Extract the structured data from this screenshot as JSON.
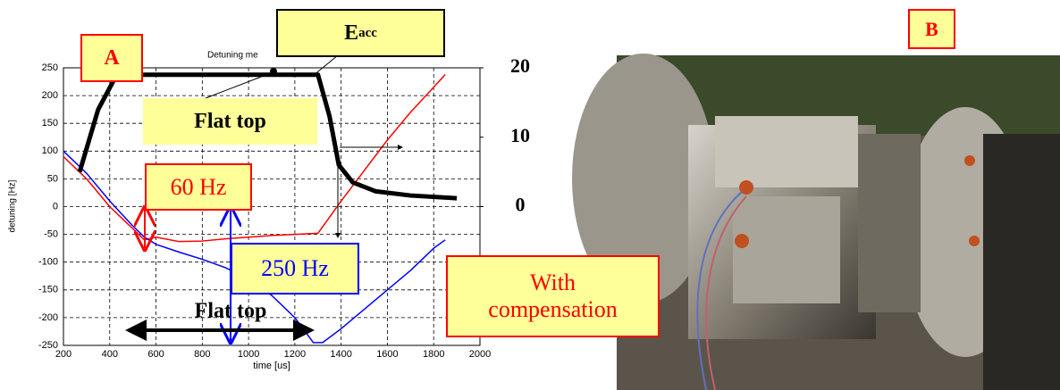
{
  "chart_data": {
    "type": "line",
    "title": "Detuning me",
    "xlabel": "time [us]",
    "ylabel": "detuning [Hz]",
    "xlim": [
      200,
      2000
    ],
    "xticks": [
      200,
      400,
      600,
      800,
      1000,
      1200,
      1400,
      1600,
      1800,
      2000
    ],
    "ylim": [
      -250,
      250
    ],
    "yticks": [
      -250,
      -200,
      -150,
      -100,
      -50,
      0,
      50,
      100,
      150,
      200,
      250
    ],
    "y2lim": [
      -20,
      20
    ],
    "y2ticks": [
      0,
      10,
      20
    ],
    "grid": true,
    "series": [
      {
        "color": "#ff0000",
        "x": [
          200,
          300,
          400,
          500,
          550,
          600,
          700,
          800,
          900,
          1000,
          1100,
          1200,
          1300,
          1400,
          1500,
          1600,
          1700,
          1800,
          1850
        ],
        "values": [
          90,
          50,
          0,
          -40,
          -60,
          -55,
          -63,
          -62,
          -58,
          -55,
          -52,
          -50,
          -48,
          10,
          65,
          120,
          170,
          215,
          238
        ]
      },
      {
        "color": "#0000ff",
        "x": [
          200,
          300,
          400,
          500,
          550,
          600,
          700,
          800,
          900,
          1000,
          1100,
          1200,
          1280,
          1320,
          1400,
          1500,
          1600,
          1700,
          1800,
          1850
        ],
        "values": [
          100,
          60,
          10,
          -35,
          -55,
          -68,
          -82,
          -95,
          -110,
          -130,
          -160,
          -200,
          -245,
          -245,
          -220,
          -185,
          -150,
          -115,
          -75,
          -60
        ]
      },
      {
        "color": "#000000",
        "axis": "y2",
        "x": [
          270,
          350,
          430,
          1300,
          1350,
          1390,
          1450,
          1550,
          1700,
          1900
        ],
        "values": [
          5,
          14,
          19,
          19,
          13,
          6,
          3.5,
          2.2,
          1.6,
          1.2
        ]
      }
    ],
    "annotations": {
      "a": "A",
      "b": "B",
      "eacc_main": "E",
      "eacc_sub": "acc",
      "flat_top_box": "Flat top",
      "hz60": "60 Hz",
      "hz250": "250 Hz",
      "flat_top_arrow": "Flat top",
      "compensation": "With compensation"
    }
  }
}
